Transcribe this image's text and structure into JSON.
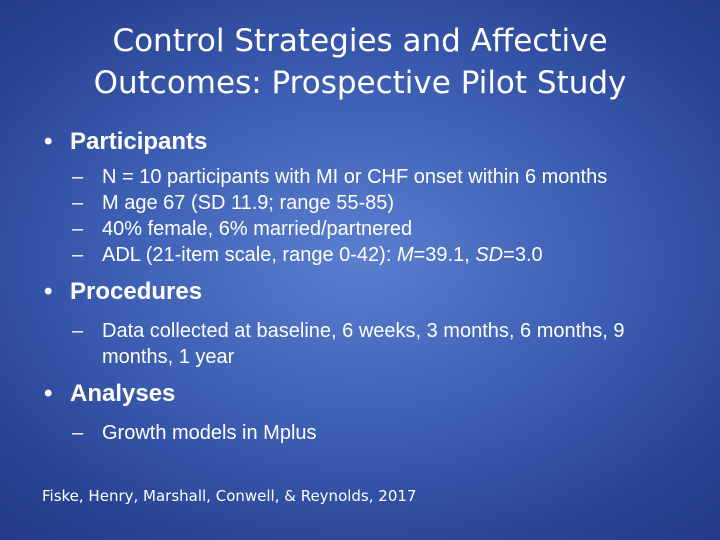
{
  "title": {
    "line1": "Control Strategies and Affective",
    "line2": "Outcomes: Prospective Pilot Study"
  },
  "bullet_glyph": "•",
  "dash_glyph": "–",
  "sections": {
    "participants": {
      "heading": "Participants",
      "items": [
        "N = 10 participants with MI or CHF onset within 6 months",
        "M age 67 (SD 11.9; range 55-85)",
        "40% female, 6% married/partnered",
        {
          "pre": "ADL (21-item scale, range 0-42): ",
          "m": "M",
          "m_val": "=39.1, ",
          "sd": "SD",
          "sd_val": "=3.0"
        }
      ]
    },
    "procedures": {
      "heading": "Procedures",
      "items": [
        "Data collected at baseline, 6 weeks, 3 months, 6 months, 9 months, 1 year"
      ]
    },
    "analyses": {
      "heading": "Analyses",
      "items": [
        "Growth models in Mplus"
      ]
    }
  },
  "citation": "Fiske, Henry, Marshall, Conwell, & Reynolds, 2017",
  "colors": {
    "background_center": "#5b7fcf",
    "background_edge": "#223a86",
    "text": "#ffffff"
  }
}
